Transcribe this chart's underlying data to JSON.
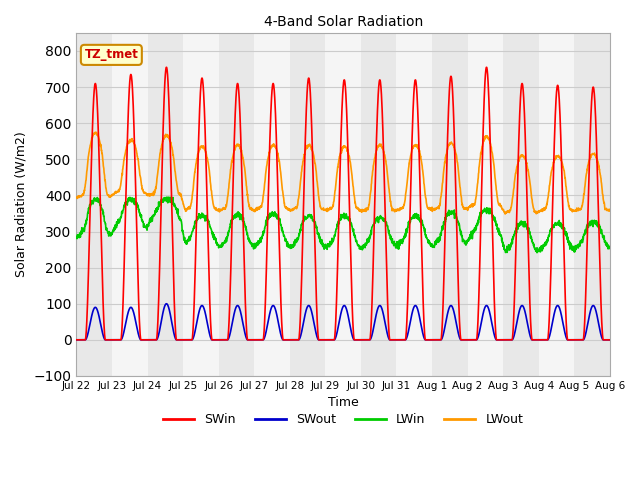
{
  "title": "4-Band Solar Radiation",
  "xlabel": "Time",
  "ylabel": "Solar Radiation (W/m2)",
  "ylim": [
    -100,
    850
  ],
  "yticks": [
    -100,
    0,
    100,
    200,
    300,
    400,
    500,
    600,
    700,
    800
  ],
  "background_color": "#ffffff",
  "plot_bg_color": "#ffffff",
  "band_color_odd": "#e8e8e8",
  "band_color_even": "#f5f5f5",
  "grid_color": "#cccccc",
  "label_box_text": "TZ_tmet",
  "label_box_facecolor": "#ffffcc",
  "label_box_edgecolor": "#cc8800",
  "label_box_textcolor": "#cc0000",
  "colors": {
    "SWin": "#ff0000",
    "SWout": "#0000cc",
    "LWin": "#00cc00",
    "LWout": "#ff9900"
  },
  "linewidths": {
    "SWin": 1.2,
    "SWout": 1.2,
    "LWin": 1.2,
    "LWout": 1.2
  },
  "n_days": 15,
  "hours_per_day": 24,
  "pts_per_hour": 6,
  "SWin_peak": [
    710,
    735,
    755,
    725,
    710,
    710,
    725,
    720,
    720,
    720,
    730,
    755,
    710,
    705,
    700
  ],
  "SWout_peak": [
    90,
    90,
    100,
    95,
    95,
    95,
    95,
    95,
    95,
    95,
    95,
    95,
    95,
    95,
    95
  ],
  "LWin_day_base": [
    330,
    360,
    385,
    310,
    300,
    305,
    300,
    300,
    300,
    305,
    305,
    335,
    285,
    292,
    298
  ],
  "LWin_night_base": [
    310,
    335,
    355,
    290,
    280,
    285,
    280,
    280,
    280,
    285,
    285,
    310,
    265,
    272,
    278
  ],
  "LWin_day_peak": [
    390,
    390,
    390,
    345,
    348,
    350,
    344,
    344,
    340,
    344,
    354,
    360,
    323,
    323,
    328
  ],
  "LWout_day_base": [
    415,
    425,
    420,
    375,
    375,
    376,
    375,
    375,
    372,
    376,
    378,
    385,
    368,
    373,
    373
  ],
  "LWout_night_base": [
    405,
    415,
    410,
    368,
    368,
    370,
    368,
    368,
    366,
    370,
    370,
    378,
    360,
    366,
    366
  ],
  "LWout_day_peak": [
    575,
    555,
    568,
    538,
    542,
    542,
    542,
    538,
    542,
    542,
    548,
    566,
    512,
    512,
    518
  ],
  "figsize": [
    6.4,
    4.8
  ],
  "dpi": 100
}
